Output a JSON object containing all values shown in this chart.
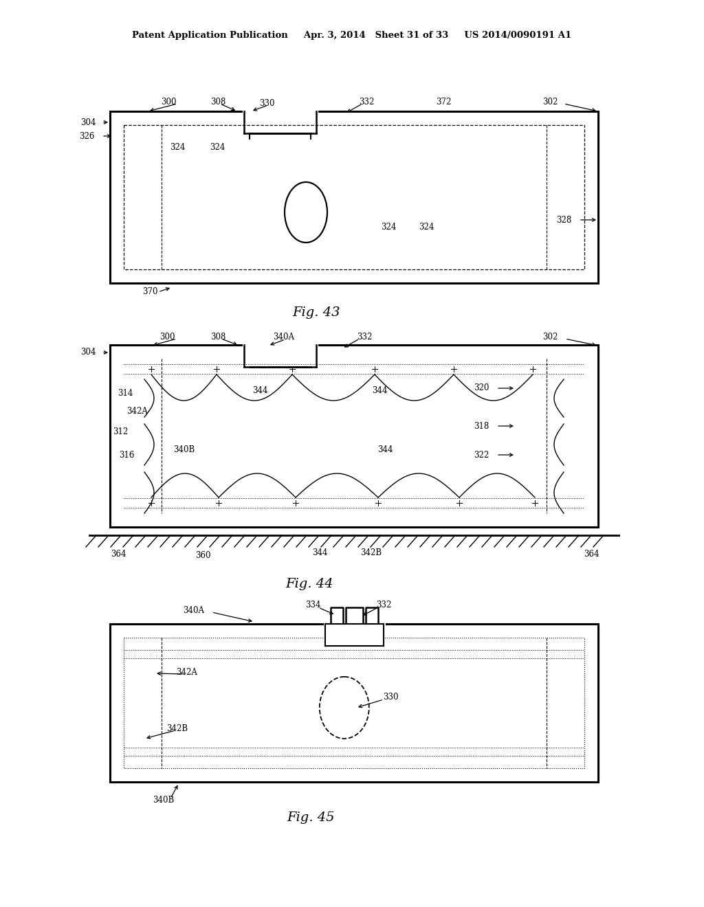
{
  "bg": "#ffffff",
  "lc": "#000000",
  "header": "Patent Application Publication     Apr. 3, 2014   Sheet 31 of 33     US 2014/0090191 A1",
  "f43_cap": "Fig. 43",
  "f44_cap": "Fig. 44",
  "f45_cap": "Fig. 45",
  "pw": 1024,
  "ph": 1320
}
